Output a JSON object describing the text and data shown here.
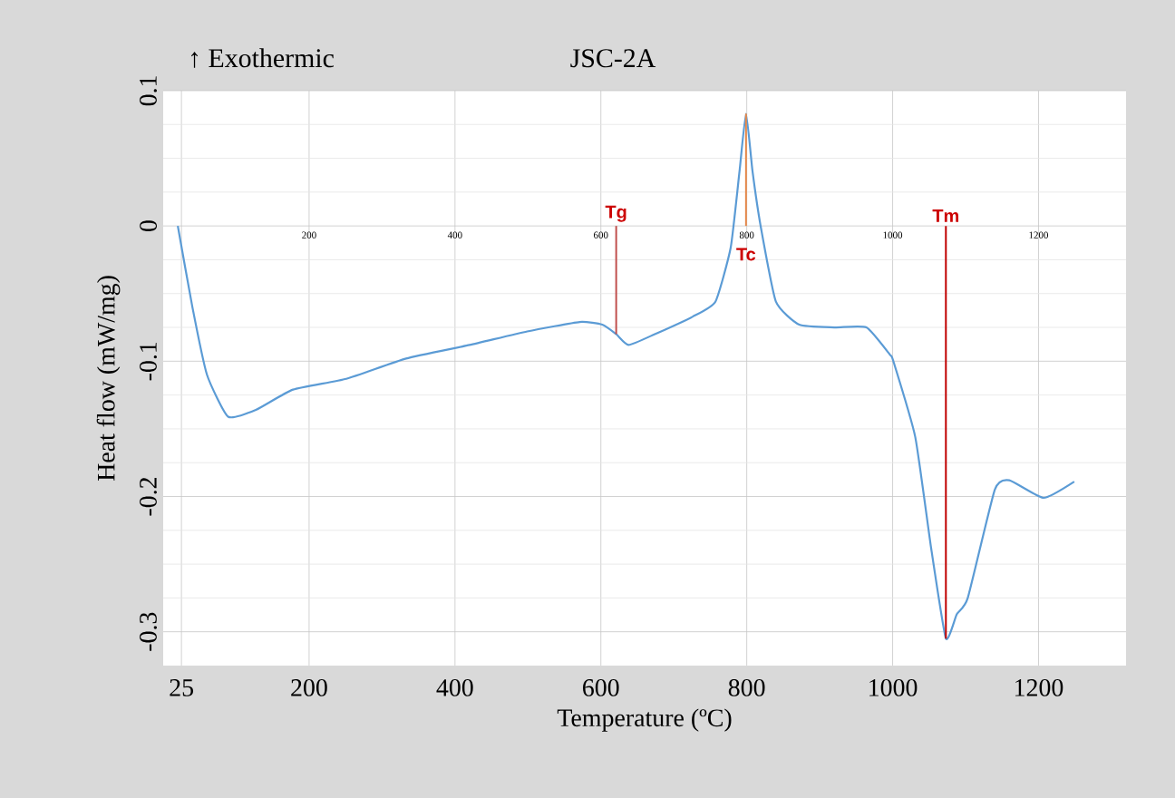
{
  "chart_data": {
    "type": "line",
    "title": "JSC-2A",
    "xlabel": "Temperature (ºC)",
    "ylabel": "Heat flow (mW/mg)",
    "annotations": [
      "↑ Exothermic"
    ],
    "xlim": [
      0,
      1320
    ],
    "ylim": [
      -0.325,
      0.1
    ],
    "xticks": [
      25,
      200,
      400,
      600,
      800,
      1000,
      1200
    ],
    "x2lim": [
      0,
      1320
    ],
    "x2ticks": [
      200,
      400,
      600,
      800,
      1000,
      1200
    ],
    "yticks": [
      0.1,
      0,
      -0.1,
      -0.2,
      -0.3
    ],
    "grid": true,
    "marker": "none",
    "line_style": "solid",
    "ref_lines": [
      {
        "axis": "x",
        "value": 621,
        "label": "Tg",
        "color": "#c0504d"
      },
      {
        "axis": "x",
        "value": 799,
        "label": "Tc",
        "color": "#e5884a"
      },
      {
        "axis": "x",
        "value": 1073,
        "label": "Tm",
        "color": "#c00000"
      }
    ],
    "series": [
      {
        "color": "#5b9bd5",
        "x": [
          20,
          40,
          60,
          89,
          127,
          178,
          251,
          333,
          420,
          499,
          571,
          602,
          621,
          638,
          674,
          726,
          757,
          778,
          790,
          799,
          808,
          819,
          840,
          872,
          920,
          964,
          996,
          1001,
          1031,
          1053,
          1073,
          1088,
          1103,
          1140,
          1160,
          1207,
          1249
        ],
        "values": [
          0,
          -0.06,
          -0.11,
          -0.141,
          -0.136,
          -0.121,
          -0.113,
          -0.098,
          -0.088,
          -0.078,
          -0.071,
          -0.073,
          -0.08,
          -0.088,
          -0.08,
          -0.067,
          -0.056,
          -0.016,
          0.04,
          0.083,
          0.04,
          0,
          -0.056,
          -0.073,
          -0.075,
          -0.075,
          -0.095,
          -0.1,
          -0.156,
          -0.239,
          -0.305,
          -0.287,
          -0.275,
          -0.195,
          -0.188,
          -0.201,
          -0.189
        ]
      }
    ]
  }
}
